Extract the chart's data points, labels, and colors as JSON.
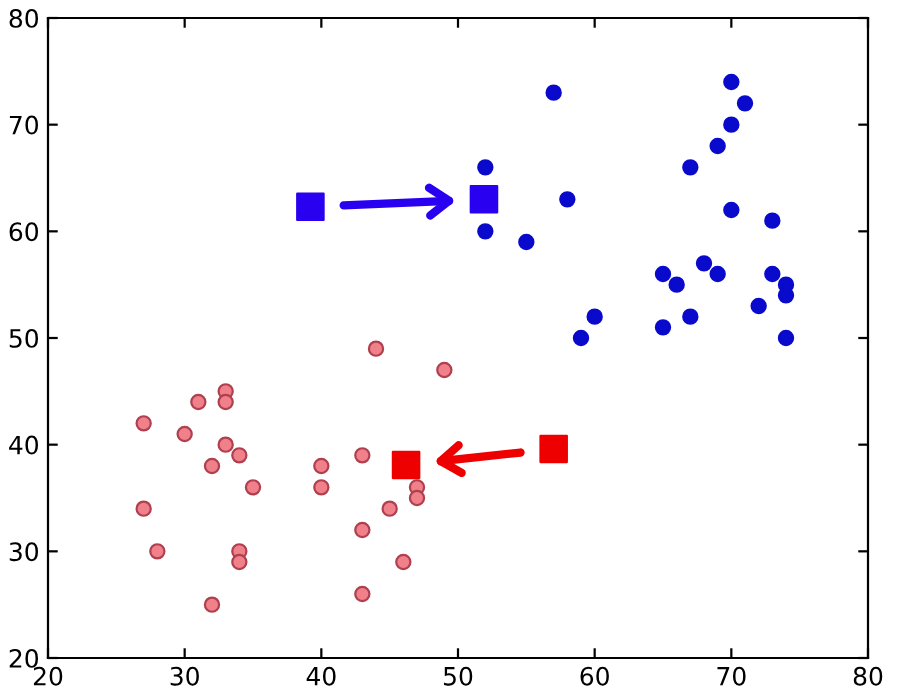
{
  "chart_data": {
    "type": "scatter",
    "xlim": [
      20,
      80
    ],
    "ylim": [
      20,
      80
    ],
    "xticks": [
      20,
      30,
      40,
      50,
      60,
      70,
      80
    ],
    "yticks": [
      20,
      30,
      40,
      50,
      60,
      70,
      80
    ],
    "grid": false,
    "legend": false,
    "series": [
      {
        "color": "#0a0acc",
        "marker": "circle",
        "x": [
          57,
          70,
          71,
          70,
          69,
          67,
          52,
          58,
          70,
          73,
          52,
          55,
          68,
          65,
          69,
          73,
          66,
          74,
          74,
          72,
          60,
          67,
          65,
          59,
          74
        ],
        "values": [
          73,
          74,
          72,
          70,
          68,
          66,
          66,
          63,
          62,
          61,
          60,
          59,
          57,
          56,
          56,
          56,
          55,
          55,
          54,
          53,
          52,
          52,
          51,
          50,
          50
        ]
      },
      {
        "color": "#f0808a",
        "marker": "circle",
        "x": [
          44,
          49,
          33,
          31,
          33,
          27,
          30,
          33,
          34,
          43,
          32,
          40,
          35,
          40,
          47,
          47,
          27,
          45,
          43,
          28,
          34,
          34,
          46,
          43,
          32
        ],
        "values": [
          49,
          47,
          45,
          44,
          44,
          42,
          41,
          40,
          39,
          39,
          38,
          38,
          36,
          36,
          36,
          35,
          34,
          34,
          32,
          30,
          30,
          29,
          29,
          26,
          25
        ]
      },
      {
        "color": "#2a00f0",
        "marker": "square",
        "x": [
          39.2,
          51.9
        ],
        "values": [
          62.3,
          63.0
        ]
      },
      {
        "color": "#ee0000",
        "marker": "square",
        "x": [
          57.0,
          46.2
        ],
        "values": [
          39.6,
          38.1
        ]
      }
    ]
  }
}
